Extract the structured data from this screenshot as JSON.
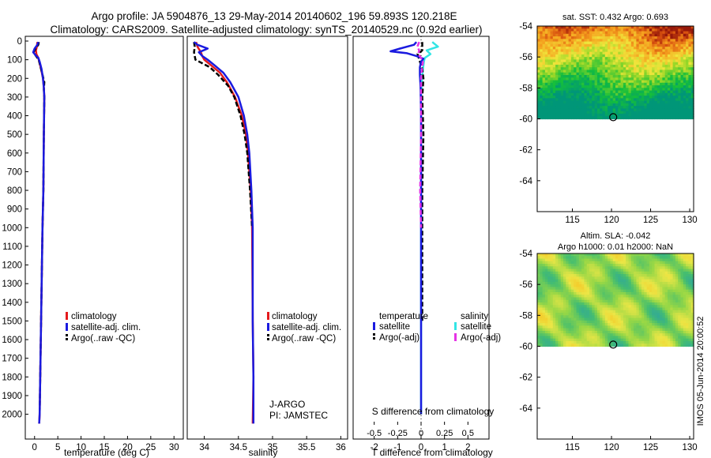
{
  "header": {
    "line1": "Argo profile: JA 5904876_13 29-May-2014 20140602_196 59.893S 120.218E",
    "line2": "Climatology: CARS2009. Satellite-adjusted climatology: synTS_20140529.nc (0.92d earlier)"
  },
  "watermark": "IMOS 05-Jun-2014 20:00:52",
  "colors": {
    "climatology": "#e41a1c",
    "satellite_clim": "#1a1adf",
    "argo": "#000000",
    "sal_satellite": "#33e5e5",
    "sal_argo": "#e533e5"
  },
  "depth_ticks": [
    "0",
    "100",
    "200",
    "300",
    "400",
    "500",
    "600",
    "700",
    "800",
    "900",
    "1000",
    "1100",
    "1200",
    "1300",
    "1400",
    "1500",
    "1600",
    "1700",
    "1800",
    "1900",
    "2000"
  ],
  "chart_data": [
    {
      "id": "temperature",
      "type": "line",
      "xlabel": "temperature (deg C)",
      "ylabel": "",
      "xlim": [
        -2,
        32
      ],
      "ylim": [
        2060,
        0
      ],
      "xticks": [
        "0",
        "5",
        "10",
        "15",
        "20",
        "25",
        "30"
      ],
      "legend": [
        "climatology",
        "satellite-adj. clim.",
        "Argo(..raw -QC)"
      ],
      "series": [
        {
          "name": "climatology",
          "depth": [
            5,
            30,
            50,
            70,
            90,
            110,
            150,
            200,
            250,
            300,
            500,
            800,
            1000,
            1500,
            2000,
            2050
          ],
          "values": [
            0.6,
            0.5,
            0.3,
            0.4,
            0.8,
            1.0,
            1.4,
            1.8,
            2.0,
            2.1,
            2.0,
            1.9,
            1.7,
            1.4,
            1.1,
            1.0
          ]
        },
        {
          "name": "satellite-adj. clim.",
          "depth": [
            5,
            20,
            40,
            60,
            75,
            90,
            110,
            150,
            200,
            250,
            300,
            500,
            800,
            1000,
            1500,
            2000,
            2050
          ],
          "values": [
            0.8,
            0.6,
            0.0,
            -0.3,
            0.2,
            0.8,
            1.1,
            1.5,
            1.8,
            2.0,
            2.1,
            2.0,
            1.9,
            1.7,
            1.4,
            1.1,
            1.0
          ]
        },
        {
          "name": "Argo(..raw -QC)",
          "depth": [
            5,
            20,
            40,
            60,
            80,
            100,
            130,
            170,
            220,
            260,
            300,
            500,
            800,
            1000,
            1500,
            2000
          ],
          "values": [
            0.9,
            0.8,
            0.2,
            -0.2,
            0.3,
            0.9,
            1.2,
            1.6,
            2.1,
            2.0,
            2.1,
            2.0,
            1.9,
            1.7,
            1.4,
            1.1
          ]
        }
      ]
    },
    {
      "id": "salinity",
      "type": "line",
      "xlabel": "salinity",
      "ylabel": "",
      "xlim": [
        33.75,
        36.1
      ],
      "ylim": [
        2060,
        0
      ],
      "xticks": [
        "34",
        "34.5",
        "35",
        "35.5",
        "36"
      ],
      "legend": [
        "climatology",
        "satellite-adj. clim.",
        "Argo(..raw -QC)"
      ],
      "annotations": [
        "J-ARGO",
        "PI: JAMSTEC"
      ],
      "series": [
        {
          "name": "climatology",
          "depth": [
            5,
            30,
            60,
            80,
            100,
            130,
            170,
            220,
            300,
            400,
            500,
            600,
            800,
            1000,
            1500,
            1800,
            2050
          ],
          "values": [
            33.88,
            33.9,
            33.95,
            33.97,
            34.0,
            34.1,
            34.23,
            34.33,
            34.45,
            34.55,
            34.61,
            34.64,
            34.68,
            34.7,
            34.71,
            34.72,
            34.71
          ]
        },
        {
          "name": "satellite-adj. clim.",
          "depth": [
            5,
            20,
            40,
            60,
            80,
            100,
            130,
            170,
            220,
            300,
            400,
            500,
            600,
            800,
            1000,
            1500,
            1800,
            2050
          ],
          "values": [
            33.85,
            33.9,
            34.05,
            33.92,
            33.97,
            34.05,
            34.15,
            34.28,
            34.38,
            34.5,
            34.58,
            34.63,
            34.66,
            34.69,
            34.71,
            34.71,
            34.72,
            34.72
          ]
        },
        {
          "name": "Argo(..raw -QC)",
          "depth": [
            5,
            30,
            60,
            80,
            100,
            115,
            140,
            180,
            240,
            300,
            400,
            500,
            600,
            800,
            1000
          ],
          "values": [
            33.85,
            33.86,
            33.85,
            33.86,
            33.87,
            33.95,
            34.08,
            34.2,
            34.35,
            34.44,
            34.53,
            34.59,
            34.63,
            34.67,
            34.7
          ]
        }
      ]
    },
    {
      "id": "difference",
      "type": "line",
      "xlabel": "T difference from climatology",
      "x2label": "S difference from climatology",
      "xlim": [
        -2.9,
        2.9
      ],
      "ylim": [
        2060,
        0
      ],
      "xticks": [
        "-2",
        "-1",
        "0",
        "1",
        "2"
      ],
      "sticks": [
        "-0.5",
        "-0.25",
        "0",
        "0.25",
        "0.5"
      ],
      "legend_headers": [
        "temperature",
        "salinity"
      ],
      "legend": [
        "satellite",
        "Argo(-adj)",
        "satellite",
        "Argo(-adj)"
      ],
      "series": [
        {
          "name": "temperature satellite",
          "depth": [
            5,
            20,
            40,
            55,
            65,
            80,
            95,
            110,
            140,
            180,
            250,
            400,
            800,
            1500,
            2000
          ],
          "values": [
            -0.2,
            -0.3,
            -0.9,
            -1.3,
            -0.6,
            -0.2,
            0.1,
            0.0,
            -0.05,
            -0.05,
            -0.02,
            0.0,
            0.0,
            0.0,
            0.0
          ]
        },
        {
          "name": "temperature Argo(-adj)",
          "depth": [
            5,
            50,
            70,
            90,
            110,
            150,
            200,
            300,
            500,
            800,
            1000,
            1500
          ],
          "values": [
            0.05,
            0.05,
            -0.15,
            -0.1,
            -0.05,
            0.05,
            0.1,
            0.05,
            0.1,
            0.05,
            0.05,
            0.05
          ]
        },
        {
          "name": "salinity satellite",
          "depth": [
            5,
            30,
            50,
            70,
            90,
            110,
            150,
            200,
            300,
            500,
            800,
            1500,
            2000
          ],
          "values": [
            0.12,
            0.18,
            0.06,
            0.1,
            0.04,
            0.03,
            0.02,
            0.01,
            0.0,
            0.0,
            0.0,
            0.0,
            0.0
          ]
        },
        {
          "name": "salinity Argo(-adj)",
          "depth": [
            5,
            30,
            50,
            70,
            90,
            110,
            150,
            200,
            300,
            500,
            800,
            1000
          ],
          "values": [
            -0.02,
            -0.04,
            -0.02,
            -0.03,
            0.0,
            0.02,
            0.01,
            0.0,
            0.0,
            0.0,
            -0.01,
            0.0
          ]
        }
      ]
    },
    {
      "id": "sst_map",
      "type": "heatmap",
      "title": "sat. SST: 0.432  Argo: 0.693",
      "xticks": [
        "115",
        "120",
        "125",
        "130"
      ],
      "yticks": [
        "-54",
        "-56",
        "-58",
        "-60",
        "-62",
        "-64"
      ],
      "xlim": [
        110.5,
        130.5
      ],
      "ylim": [
        -66,
        -54
      ],
      "data_ylim": [
        -54,
        -60
      ],
      "marker": {
        "lon": 120.218,
        "lat": -59.893
      }
    },
    {
      "id": "sla_map",
      "type": "heatmap",
      "title": "Altim. SLA: -0.042",
      "subtitle": "Argo h1000: 0.01  h2000: NaN",
      "xticks": [
        "115",
        "120",
        "125",
        "130"
      ],
      "yticks": [
        "-54",
        "-56",
        "-58",
        "-60",
        "-62",
        "-64"
      ],
      "xlim": [
        110.5,
        130.5
      ],
      "ylim": [
        -66,
        -54
      ],
      "data_ylim": [
        -54,
        -60
      ],
      "marker": {
        "lon": 120.218,
        "lat": -59.893
      }
    }
  ]
}
